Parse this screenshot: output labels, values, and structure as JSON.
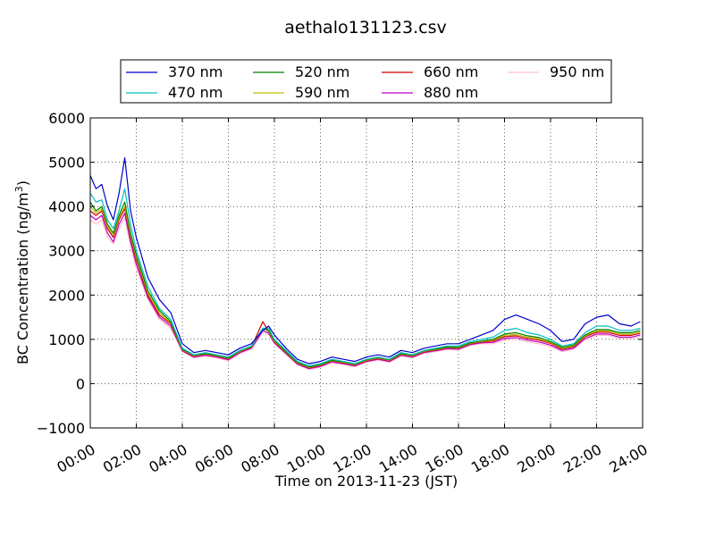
{
  "chart_data": {
    "type": "line",
    "title": "aethalo131123.csv",
    "xlabel": "Time on 2013-11-23 (JST)",
    "ylabel": "BC Concentration (ng/m",
    "ylabel_superscript": "3",
    "ylabel_suffix": ")",
    "xlim": [
      "00:00",
      "24:00"
    ],
    "ylim": [
      -1000,
      6000
    ],
    "grid": true,
    "legend_position": "top",
    "x_ticks": [
      "00:00",
      "02:00",
      "04:00",
      "06:00",
      "08:00",
      "10:00",
      "12:00",
      "14:00",
      "16:00",
      "18:00",
      "20:00",
      "22:00",
      "24:00"
    ],
    "y_ticks": [
      "6000",
      "5000",
      "4000",
      "3000",
      "2000",
      "1000",
      "0",
      "−1000"
    ],
    "x_hours": [
      0,
      0.25,
      0.5,
      0.75,
      1.0,
      1.25,
      1.5,
      1.75,
      2.0,
      2.5,
      3.0,
      3.5,
      4.0,
      4.5,
      5.0,
      5.5,
      6.0,
      6.5,
      7.0,
      7.5,
      7.75,
      8.0,
      8.5,
      9.0,
      9.5,
      10.0,
      10.5,
      11.0,
      11.5,
      12.0,
      12.5,
      13.0,
      13.5,
      14.0,
      14.5,
      15.0,
      15.5,
      16.0,
      16.5,
      17.0,
      17.5,
      18.0,
      18.5,
      19.0,
      19.5,
      20.0,
      20.5,
      21.0,
      21.5,
      22.0,
      22.5,
      23.0,
      23.5,
      23.9
    ],
    "series": [
      {
        "name": "370 nm",
        "color": "#0000cc",
        "values": [
          4700,
          4400,
          4500,
          4000,
          3700,
          4300,
          5100,
          3900,
          3300,
          2400,
          1900,
          1600,
          900,
          700,
          750,
          700,
          650,
          800,
          900,
          1200,
          1300,
          1100,
          800,
          550,
          450,
          500,
          600,
          550,
          500,
          600,
          650,
          600,
          750,
          700,
          800,
          850,
          900,
          900,
          1000,
          1100,
          1200,
          1450,
          1550,
          1450,
          1350,
          1200,
          950,
          1000,
          1350,
          1500,
          1550,
          1350,
          1300,
          1400
        ]
      },
      {
        "name": "470 nm",
        "color": "#00bfbf",
        "values": [
          4300,
          4100,
          4150,
          3700,
          3500,
          3900,
          4400,
          3600,
          3000,
          2200,
          1700,
          1450,
          800,
          650,
          700,
          650,
          600,
          750,
          850,
          1250,
          1250,
          1000,
          750,
          500,
          400,
          450,
          550,
          500,
          450,
          550,
          600,
          550,
          700,
          650,
          750,
          800,
          850,
          850,
          950,
          1000,
          1050,
          1200,
          1250,
          1150,
          1100,
          1000,
          850,
          900,
          1150,
          1300,
          1300,
          1200,
          1200,
          1250
        ]
      },
      {
        "name": "520 nm",
        "color": "#008000",
        "values": [
          4100,
          3900,
          4000,
          3600,
          3400,
          3800,
          4100,
          3400,
          2900,
          2100,
          1650,
          1400,
          780,
          640,
          680,
          640,
          580,
          740,
          840,
          1250,
          1200,
          980,
          720,
          480,
          380,
          430,
          530,
          490,
          440,
          540,
          590,
          540,
          680,
          640,
          740,
          780,
          830,
          820,
          920,
          960,
          1000,
          1120,
          1150,
          1080,
          1040,
          950,
          820,
          870,
          1100,
          1220,
          1220,
          1150,
          1150,
          1200
        ]
      },
      {
        "name": "590 nm",
        "color": "#bfbf00",
        "values": [
          4000,
          3850,
          3950,
          3550,
          3350,
          3750,
          4000,
          3350,
          2850,
          2050,
          1600,
          1380,
          770,
          630,
          670,
          630,
          570,
          730,
          830,
          1250,
          1180,
          960,
          710,
          470,
          370,
          420,
          520,
          480,
          430,
          530,
          580,
          530,
          670,
          630,
          730,
          770,
          820,
          810,
          910,
          950,
          980,
          1090,
          1110,
          1050,
          1010,
          930,
          800,
          850,
          1080,
          1190,
          1190,
          1120,
          1120,
          1170
        ]
      },
      {
        "name": "660 nm",
        "color": "#cc0000",
        "values": [
          3900,
          3800,
          3900,
          3500,
          3300,
          3700,
          3950,
          3300,
          2800,
          2000,
          1550,
          1350,
          760,
          620,
          660,
          620,
          560,
          720,
          820,
          1400,
          1170,
          950,
          700,
          460,
          360,
          410,
          510,
          470,
          420,
          520,
          570,
          520,
          660,
          620,
          720,
          760,
          810,
          800,
          900,
          940,
          960,
          1060,
          1080,
          1020,
          980,
          910,
          780,
          830,
          1060,
          1160,
          1160,
          1090,
          1090,
          1140
        ]
      },
      {
        "name": "880 nm",
        "color": "#bf00bf",
        "values": [
          3800,
          3700,
          3800,
          3400,
          3200,
          3600,
          3850,
          3200,
          2700,
          1950,
          1500,
          1300,
          740,
          600,
          640,
          600,
          540,
          700,
          800,
          1200,
          1140,
          920,
          680,
          440,
          340,
          390,
          490,
          450,
          400,
          500,
          550,
          500,
          640,
          600,
          700,
          740,
          790,
          780,
          880,
          920,
          930,
          1020,
          1040,
          980,
          940,
          870,
          750,
          800,
          1020,
          1120,
          1120,
          1050,
          1050,
          1100
        ]
      },
      {
        "name": "950 nm",
        "color": "#ffc0cb",
        "values": [
          3700,
          3600,
          3700,
          3300,
          3150,
          3500,
          3750,
          3100,
          2600,
          1900,
          1450,
          1250,
          720,
          580,
          620,
          580,
          520,
          680,
          780,
          1150,
          1100,
          900,
          660,
          420,
          320,
          370,
          470,
          430,
          380,
          480,
          530,
          480,
          620,
          580,
          680,
          720,
          770,
          760,
          860,
          900,
          900,
          980,
          1000,
          940,
          900,
          840,
          720,
          780,
          990,
          1090,
          1090,
          1020,
          1020,
          1070
        ]
      }
    ]
  }
}
